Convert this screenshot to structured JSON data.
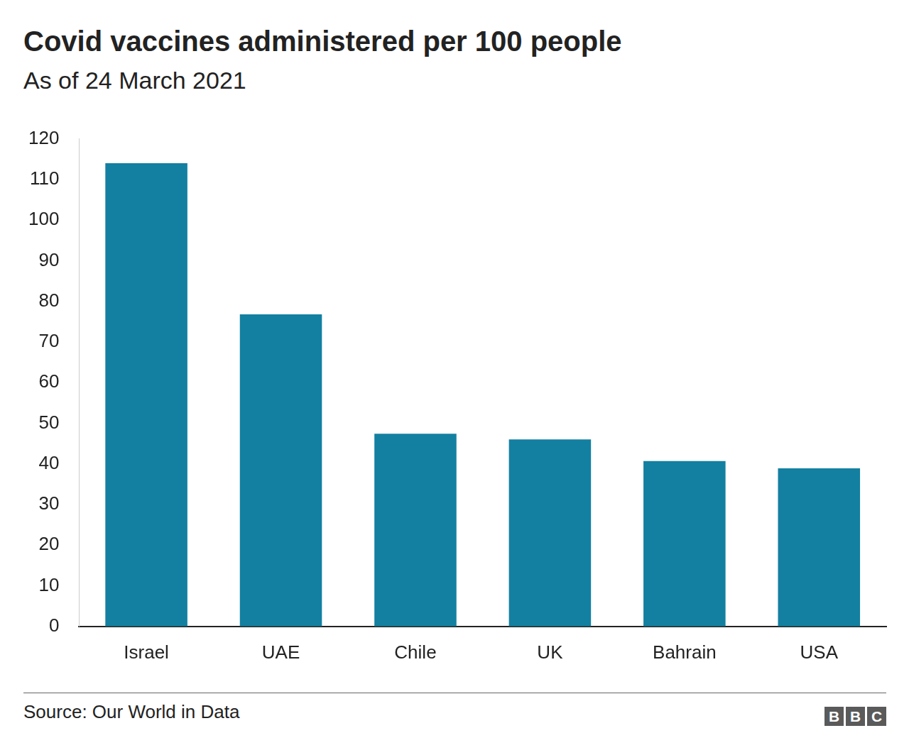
{
  "chart_data": {
    "type": "bar",
    "title": "Covid vaccines administered per 100 people",
    "subtitle": "As of 24 March 2021",
    "categories": [
      "Israel",
      "UAE",
      "Chile",
      "UK",
      "Bahrain",
      "USA"
    ],
    "values": [
      114,
      76.8,
      47.4,
      46,
      40.7,
      38.9
    ],
    "color": "#1380a1",
    "ylim": [
      0,
      120
    ],
    "yticks": [
      0,
      10,
      20,
      30,
      40,
      50,
      60,
      70,
      80,
      90,
      100,
      110,
      120
    ],
    "grid": false,
    "source": "Source: Our World in Data",
    "logo": "BBC"
  }
}
